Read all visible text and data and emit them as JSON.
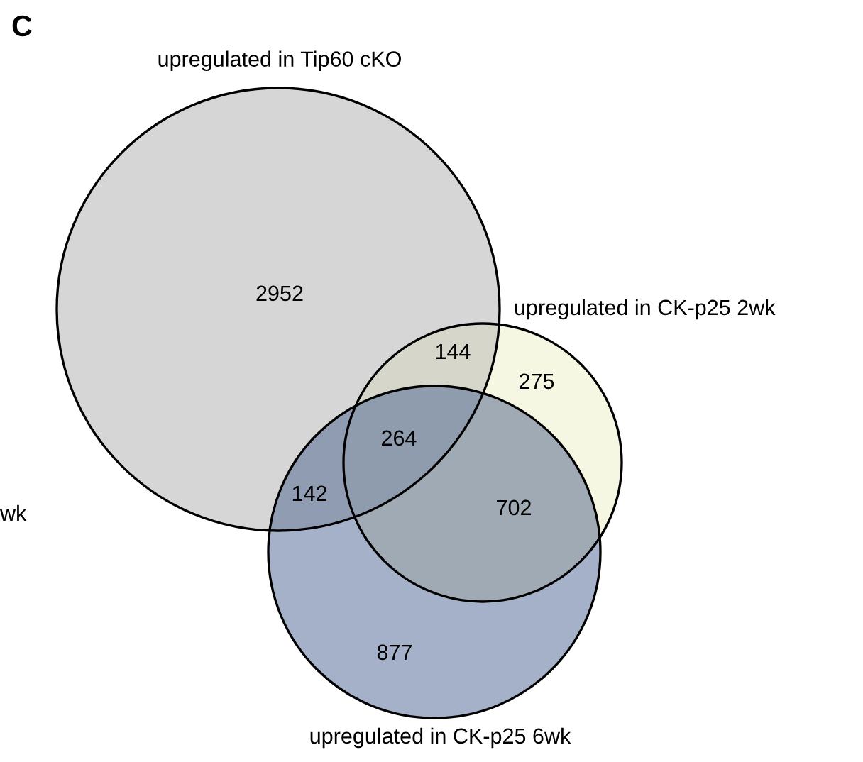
{
  "chart_data": {
    "type": "other",
    "title": "C",
    "categories": [
      null,
      null,
      null,
      null,
      null,
      null,
      null
    ],
    "values": [
      2952,
      144,
      275,
      264,
      142,
      702,
      877
    ],
    "colors": [
      "#d6d6d6",
      "#d6d6ca",
      "#f6f7e2",
      "#8f9cae",
      "#909cb2",
      "#a0aab5",
      "#a5b1c8"
    ],
    "data_labels": true,
    "annotations": [
      "upregulated in Tip60 cKO",
      "upregulated in CK-p25 2wk",
      "upregulated in CK-p25 6wk",
      "wk"
    ]
  }
}
